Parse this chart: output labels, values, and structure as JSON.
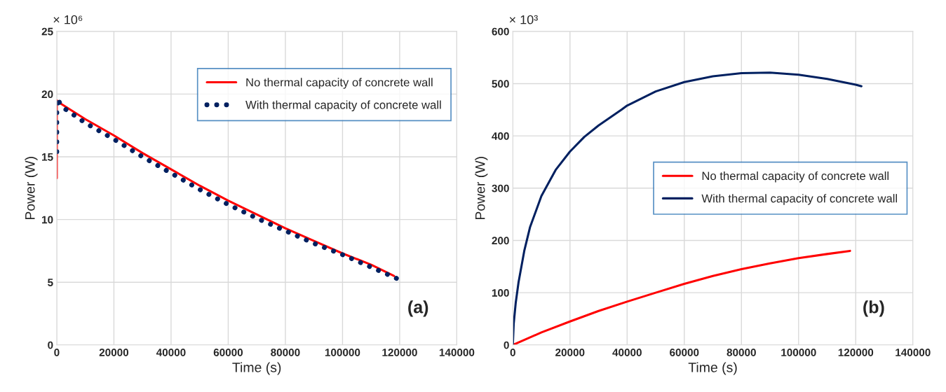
{
  "chart_data": [
    {
      "type": "line",
      "xlabel": "Time (s)",
      "ylabel": "Power (W)",
      "annotations": [
        "× 10⁶",
        "(a)"
      ],
      "xlim": [
        0,
        140000
      ],
      "xticks": [
        0,
        20000,
        40000,
        60000,
        80000,
        100000,
        120000,
        140000
      ],
      "ylim": [
        0,
        25
      ],
      "yticks": [
        0,
        5,
        10,
        15,
        20,
        25
      ],
      "grid": true,
      "legend": "top right",
      "series": [
        {
          "name": "No thermal capacity of concrete wall",
          "color": "#ff0000",
          "line_style": "solid",
          "x": [
            0,
            0,
            1000,
            10000,
            20000,
            30000,
            40000,
            50000,
            60000,
            70000,
            80000,
            90000,
            100000,
            110000,
            118000
          ],
          "values": [
            13.3,
            19.5,
            19.3,
            18.0,
            16.7,
            15.3,
            14.0,
            12.7,
            11.5,
            10.4,
            9.3,
            8.3,
            7.3,
            6.4,
            5.5
          ]
        },
        {
          "name": "With thermal capacity of concrete wall",
          "color": "#002060",
          "line_style": "dotted",
          "x": [
            0,
            0,
            500,
            1000,
            3000,
            10000,
            20000,
            30000,
            40000,
            50000,
            60000,
            70000,
            80000,
            90000,
            100000,
            110000,
            120000
          ],
          "values": [
            15.4,
            18.5,
            19.7,
            19.3,
            18.8,
            17.7,
            16.4,
            15.0,
            13.7,
            12.4,
            11.2,
            10.1,
            9.1,
            8.1,
            7.2,
            6.2,
            5.2
          ]
        }
      ]
    },
    {
      "type": "line",
      "xlabel": "Time (s)",
      "ylabel": "Power (W)",
      "annotations": [
        "× 10³",
        "(b)"
      ],
      "xlim": [
        0,
        140000
      ],
      "xticks": [
        0,
        20000,
        40000,
        60000,
        80000,
        100000,
        120000,
        140000
      ],
      "ylim": [
        0,
        600
      ],
      "yticks": [
        0,
        100,
        200,
        300,
        400,
        500,
        600
      ],
      "grid": true,
      "legend": "right",
      "series": [
        {
          "name": "No thermal capacity of concrete wall",
          "color": "#ff0000",
          "line_style": "solid",
          "x": [
            0,
            10000,
            20000,
            30000,
            40000,
            50000,
            60000,
            70000,
            80000,
            90000,
            100000,
            110000,
            118000
          ],
          "values": [
            0,
            24,
            45,
            65,
            83,
            100,
            117,
            132,
            145,
            156,
            166,
            174,
            180
          ]
        },
        {
          "name": "With thermal capacity of concrete wall",
          "color": "#002060",
          "line_style": "solid",
          "x": [
            0,
            300,
            1000,
            2000,
            4000,
            6000,
            10000,
            15000,
            20000,
            25000,
            30000,
            38000,
            40000,
            50000,
            60000,
            70000,
            80000,
            90000,
            100000,
            110000,
            120000,
            122000
          ],
          "values": [
            0,
            40,
            80,
            120,
            180,
            225,
            285,
            335,
            370,
            398,
            420,
            450,
            458,
            485,
            503,
            514,
            520,
            521,
            517,
            509,
            498,
            495
          ]
        }
      ]
    }
  ]
}
